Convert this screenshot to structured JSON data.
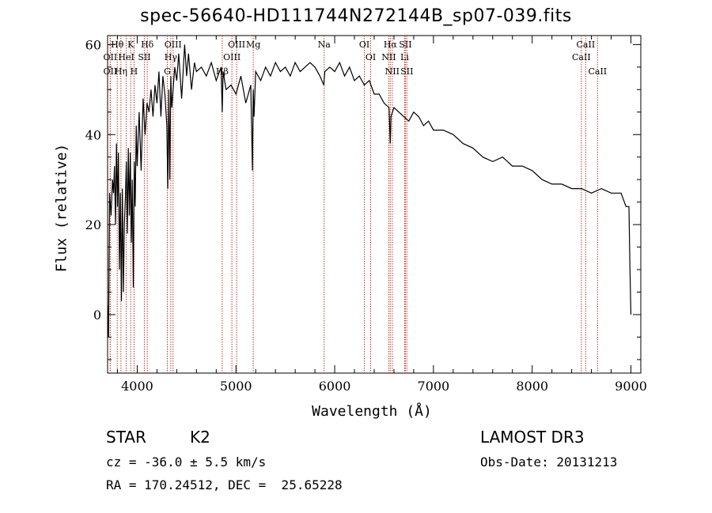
{
  "header": {
    "title": "spec-56640-HD111744N272144B_sp07-039.fits"
  },
  "info": {
    "star": "STAR",
    "subclass": "K2",
    "survey": "LAMOST DR3",
    "cz": "cz = -36.0 ± 5.5 km/s",
    "obs_date": "Obs-Date: 20131213",
    "radec": "RA = 170.24512, DEC =  25.65228"
  },
  "chart_data": {
    "type": "line",
    "title": "spec-56640-HD111744N272144B_sp07-039.fits",
    "xlabel": "Wavelength (Å)",
    "ylabel": "Flux (relative)",
    "xlim": [
      3700,
      9100
    ],
    "ylim": [
      -13,
      62
    ],
    "xticks": [
      4000,
      5000,
      6000,
      7000,
      8000,
      9000
    ],
    "yticks": [
      0,
      20,
      40,
      60
    ],
    "series": [
      {
        "name": "flux",
        "x": [
          3700,
          3710,
          3720,
          3735,
          3750,
          3760,
          3770,
          3780,
          3790,
          3800,
          3810,
          3820,
          3830,
          3840,
          3850,
          3860,
          3870,
          3880,
          3890,
          3900,
          3910,
          3920,
          3930,
          3940,
          3950,
          3960,
          3970,
          3980,
          3990,
          4000,
          4020,
          4040,
          4060,
          4080,
          4100,
          4120,
          4140,
          4160,
          4180,
          4200,
          4220,
          4240,
          4260,
          4280,
          4300,
          4310,
          4320,
          4330,
          4340,
          4350,
          4380,
          4400,
          4420,
          4450,
          4480,
          4500,
          4520,
          4550,
          4580,
          4600,
          4650,
          4700,
          4750,
          4800,
          4850,
          4861,
          4870,
          4900,
          4950,
          5000,
          5050,
          5100,
          5150,
          5167,
          5175,
          5183,
          5200,
          5250,
          5300,
          5350,
          5400,
          5450,
          5500,
          5550,
          5600,
          5650,
          5700,
          5750,
          5800,
          5850,
          5890,
          5900,
          5950,
          6000,
          6050,
          6100,
          6150,
          6200,
          6250,
          6300,
          6350,
          6400,
          6450,
          6500,
          6550,
          6563,
          6570,
          6600,
          6650,
          6700,
          6750,
          6800,
          6850,
          6900,
          6950,
          7000,
          7100,
          7200,
          7300,
          7400,
          7500,
          7600,
          7700,
          7800,
          7900,
          8000,
          8100,
          8200,
          8300,
          8400,
          8500,
          8600,
          8700,
          8800,
          8900,
          8950,
          8980,
          8990,
          9000
        ],
        "values": [
          2,
          -5,
          27,
          22,
          30,
          27,
          33,
          20,
          38,
          24,
          36,
          10,
          27,
          3,
          28,
          5,
          20,
          26,
          34,
          18,
          37,
          22,
          36,
          16,
          30,
          6,
          34,
          24,
          42,
          33,
          45,
          32,
          48,
          40,
          47,
          45,
          50,
          44,
          51,
          47,
          54,
          44,
          53,
          49,
          42,
          28,
          50,
          30,
          53,
          46,
          55,
          52,
          58,
          48,
          60,
          53,
          58,
          50,
          56,
          54,
          55,
          53,
          56,
          52,
          55,
          45,
          54,
          50,
          51,
          49,
          53,
          47,
          51,
          32,
          50,
          44,
          54,
          52,
          55,
          53,
          56,
          54,
          55,
          53,
          56,
          54,
          55,
          56,
          55,
          53,
          51,
          54,
          55,
          54,
          56,
          53,
          55,
          52,
          53,
          51,
          52,
          49,
          49,
          47,
          46,
          38,
          44,
          46,
          45,
          44,
          43,
          45,
          44,
          42,
          43,
          41,
          41,
          40,
          38,
          37,
          35,
          34,
          35,
          33,
          33,
          32,
          30,
          29,
          29,
          28,
          28,
          27,
          28,
          27,
          27,
          24,
          24,
          10,
          0
        ]
      }
    ],
    "annotations": [
      {
        "label": "Hθ",
        "wavelength": 3798
      },
      {
        "label": "OII",
        "wavelength": 3727
      },
      {
        "label": "OII",
        "wavelength": 3727
      },
      {
        "label": "Hη",
        "wavelength": 3835
      },
      {
        "label": "HeI",
        "wavelength": 3889
      },
      {
        "label": "K",
        "wavelength": 3934
      },
      {
        "label": "H",
        "wavelength": 3968
      },
      {
        "label": "Hδ",
        "wavelength": 4102
      },
      {
        "label": "SII",
        "wavelength": 4072
      },
      {
        "label": "OIII",
        "wavelength": 4363
      },
      {
        "label": "Hγ",
        "wavelength": 4340
      },
      {
        "label": "G",
        "wavelength": 4305
      },
      {
        "label": "OIII",
        "wavelength": 5007
      },
      {
        "label": "OIII",
        "wavelength": 4959
      },
      {
        "label": "Hβ",
        "wavelength": 4861
      },
      {
        "label": "Mg",
        "wavelength": 5175
      },
      {
        "label": "Na",
        "wavelength": 5893
      },
      {
        "label": "OI",
        "wavelength": 6300
      },
      {
        "label": "OI",
        "wavelength": 6364
      },
      {
        "label": "Hα",
        "wavelength": 6563
      },
      {
        "label": "NII",
        "wavelength": 6548
      },
      {
        "label": "NII",
        "wavelength": 6583
      },
      {
        "label": "SII",
        "wavelength": 6716
      },
      {
        "label": "Li",
        "wavelength": 6708
      },
      {
        "label": "SII",
        "wavelength": 6731
      },
      {
        "label": "CaII",
        "wavelength": 8542
      },
      {
        "label": "CaII",
        "wavelength": 8498
      },
      {
        "label": "CaII",
        "wavelength": 8662
      }
    ]
  }
}
